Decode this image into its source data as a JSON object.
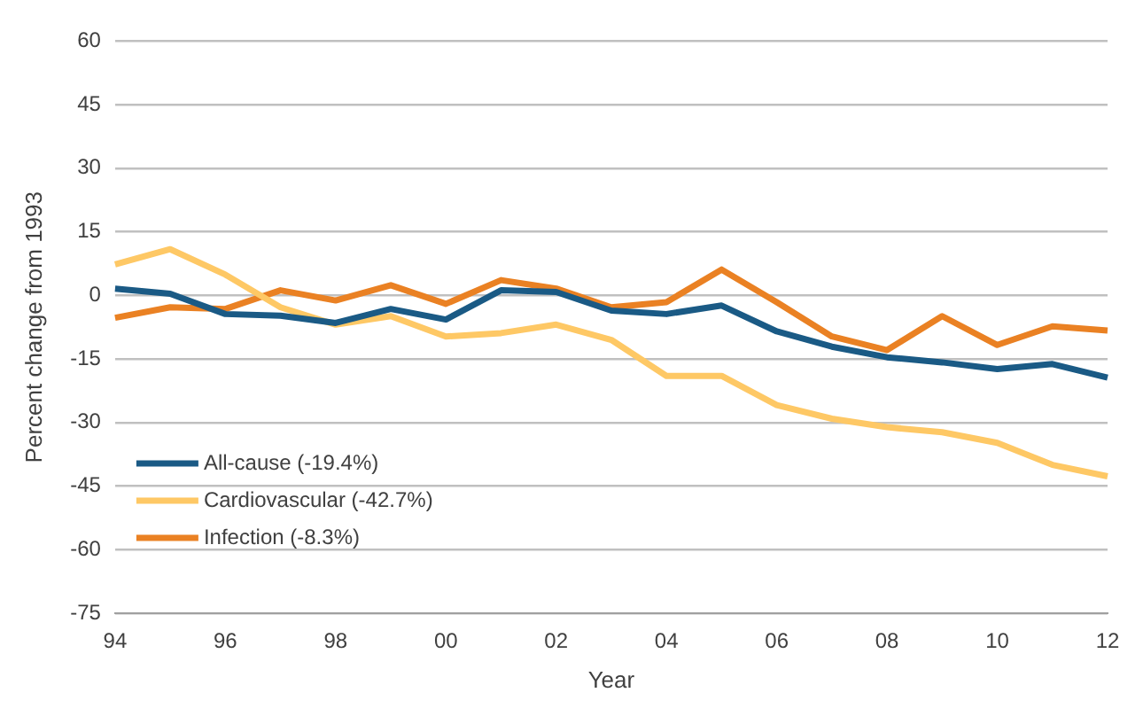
{
  "chart_data": {
    "type": "line",
    "xlabel": "Year",
    "ylabel": "Percent change from 1993",
    "categories": [
      "94",
      null,
      "96",
      null,
      "98",
      null,
      "00",
      null,
      "02",
      null,
      "04",
      null,
      "06",
      null,
      "08",
      null,
      "10",
      null,
      "12"
    ],
    "series": [
      {
        "name": "All-cause (-19.4%)",
        "color": "#1a5a85",
        "values": [
          1.6,
          0.4,
          -4.4,
          -4.8,
          -6.5,
          -3.2,
          -5.7,
          1.2,
          0.8,
          -3.6,
          -4.4,
          -2.4,
          -8.5,
          -12.1,
          -14.6,
          -15.8,
          -17.4,
          -16.2,
          -19.4
        ]
      },
      {
        "name": "Cardiovascular (-42.7%)",
        "color": "#fec865",
        "values": [
          7.3,
          10.9,
          4.9,
          -2.8,
          -6.9,
          -4.9,
          -9.7,
          -8.9,
          -6.9,
          -10.5,
          -19.0,
          -19.0,
          -25.9,
          -29.1,
          -31.1,
          -32.3,
          -34.8,
          -40.0,
          -42.7
        ]
      },
      {
        "name": "Infection (-8.3%)",
        "color": "#ea8123",
        "values": [
          -5.3,
          -2.8,
          -3.2,
          1.2,
          -1.2,
          2.4,
          -2.0,
          3.6,
          1.6,
          -2.8,
          -1.6,
          6.1,
          -1.6,
          -9.7,
          -12.9,
          -4.9,
          -11.7,
          -7.3,
          -8.3
        ]
      }
    ],
    "ylim": [
      -75,
      60
    ],
    "yticks": [
      -75,
      -60,
      -45,
      -30,
      -15,
      0,
      15,
      30,
      45,
      60
    ],
    "grid": "y",
    "legend": "bottom left",
    "marker": "none",
    "line_style": "solid"
  }
}
